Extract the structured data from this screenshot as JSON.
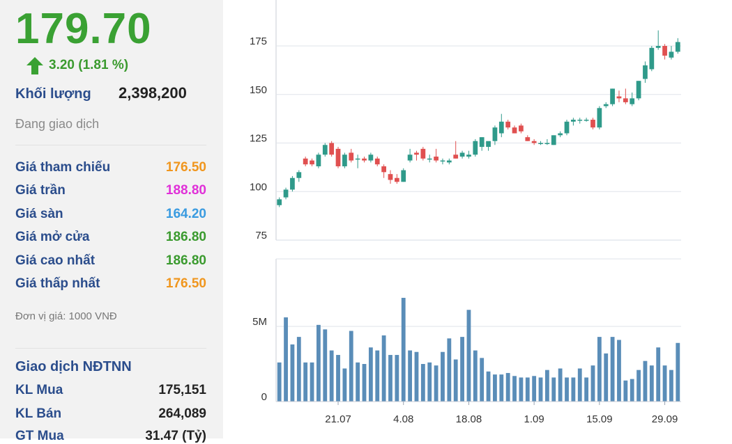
{
  "quote": {
    "price": "179.70",
    "change": "3.20 (1.81 %)",
    "volume_label": "Khối lượng",
    "volume_value": "2,398,200",
    "status": "Đang giao dịch",
    "prices": [
      {
        "label": "Giá tham chiếu",
        "value": "176.50",
        "color": "#f0961e"
      },
      {
        "label": "Giá trần",
        "value": "188.80",
        "color": "#e030d8"
      },
      {
        "label": "Giá sàn",
        "value": "164.20",
        "color": "#3a9be0"
      },
      {
        "label": "Giá mở cửa",
        "value": "186.80",
        "color": "#3a9a2e"
      },
      {
        "label": "Giá cao nhất",
        "value": "186.80",
        "color": "#3a9a2e"
      },
      {
        "label": "Giá thấp nhất",
        "value": "176.50",
        "color": "#f0961e"
      }
    ],
    "unit_note": "Đơn vị giá: 1000 VNĐ",
    "foreign_title": "Giao dịch NĐTNN",
    "foreign_rows": [
      {
        "label": "KL Mua",
        "value": "175,151"
      },
      {
        "label": "KL Bán",
        "value": "264,089"
      },
      {
        "label": "GT Mua",
        "value": "31.47 (Tỷ)"
      }
    ]
  },
  "colors": {
    "up": "#3aa133",
    "candle_up": "#2f9a8a",
    "candle_down": "#e05050",
    "volume_bar": "#5a8db8",
    "label": "#2b4d8c"
  },
  "chart_data": [
    {
      "type": "candlestick",
      "y_ticks": [
        75,
        100,
        125,
        150,
        175
      ],
      "ylim": [
        75,
        185
      ],
      "x_ticks": [
        "21.07",
        "4.08",
        "18.08",
        "1.09",
        "15.09",
        "29.09"
      ],
      "x_tick_index": [
        9,
        19,
        29,
        39,
        49,
        59
      ],
      "ohlc": [
        {
          "o": 93,
          "h": 97,
          "l": 92,
          "c": 96
        },
        {
          "o": 97,
          "h": 102,
          "l": 96,
          "c": 101
        },
        {
          "o": 101,
          "h": 108,
          "l": 100,
          "c": 107
        },
        {
          "o": 107,
          "h": 111,
          "l": 105,
          "c": 110
        },
        {
          "o": 117,
          "h": 118,
          "l": 113,
          "c": 114
        },
        {
          "o": 116,
          "h": 117,
          "l": 113,
          "c": 114
        },
        {
          "o": 113,
          "h": 120,
          "l": 112,
          "c": 119
        },
        {
          "o": 119,
          "h": 125,
          "l": 118,
          "c": 124
        },
        {
          "o": 125,
          "h": 126,
          "l": 118,
          "c": 119
        },
        {
          "o": 122,
          "h": 123,
          "l": 112,
          "c": 113
        },
        {
          "o": 113,
          "h": 120,
          "l": 112,
          "c": 119
        },
        {
          "o": 120,
          "h": 122,
          "l": 115,
          "c": 116
        },
        {
          "o": 117,
          "h": 119,
          "l": 112,
          "c": 117
        },
        {
          "o": 117,
          "h": 118,
          "l": 115,
          "c": 116
        },
        {
          "o": 116,
          "h": 120,
          "l": 115,
          "c": 119
        },
        {
          "o": 117,
          "h": 118,
          "l": 113,
          "c": 114
        },
        {
          "o": 113,
          "h": 114,
          "l": 107,
          "c": 110
        },
        {
          "o": 109,
          "h": 111,
          "l": 104,
          "c": 106
        },
        {
          "o": 107,
          "h": 109,
          "l": 104,
          "c": 105
        },
        {
          "o": 105,
          "h": 112,
          "l": 105,
          "c": 111
        },
        {
          "o": 116,
          "h": 122,
          "l": 115,
          "c": 119
        },
        {
          "o": 120,
          "h": 121,
          "l": 116,
          "c": 119
        },
        {
          "o": 122,
          "h": 123,
          "l": 116,
          "c": 117
        },
        {
          "o": 117,
          "h": 119,
          "l": 115,
          "c": 117
        },
        {
          "o": 118,
          "h": 122,
          "l": 115,
          "c": 116
        },
        {
          "o": 116,
          "h": 117,
          "l": 114,
          "c": 116
        },
        {
          "o": 115,
          "h": 117,
          "l": 114,
          "c": 116
        },
        {
          "o": 119,
          "h": 126,
          "l": 117,
          "c": 117
        },
        {
          "o": 118,
          "h": 121,
          "l": 117,
          "c": 120
        },
        {
          "o": 118,
          "h": 121,
          "l": 117,
          "c": 119
        },
        {
          "o": 119,
          "h": 127,
          "l": 118,
          "c": 126
        },
        {
          "o": 123,
          "h": 128,
          "l": 121,
          "c": 128
        },
        {
          "o": 123,
          "h": 125,
          "l": 121,
          "c": 126
        },
        {
          "o": 126,
          "h": 134,
          "l": 124,
          "c": 133
        },
        {
          "o": 130,
          "h": 140,
          "l": 128,
          "c": 136
        },
        {
          "o": 136,
          "h": 137,
          "l": 132,
          "c": 133
        },
        {
          "o": 133,
          "h": 134,
          "l": 130,
          "c": 130
        },
        {
          "o": 134,
          "h": 135,
          "l": 130,
          "c": 131
        },
        {
          "o": 128,
          "h": 129,
          "l": 126,
          "c": 126
        },
        {
          "o": 126,
          "h": 127,
          "l": 124,
          "c": 125
        },
        {
          "o": 125,
          "h": 126,
          "l": 124,
          "c": 125
        },
        {
          "o": 125,
          "h": 127,
          "l": 124,
          "c": 125
        },
        {
          "o": 124,
          "h": 129,
          "l": 124,
          "c": 129
        },
        {
          "o": 129,
          "h": 131,
          "l": 128,
          "c": 130
        },
        {
          "o": 130,
          "h": 137,
          "l": 129,
          "c": 136
        },
        {
          "o": 136,
          "h": 138,
          "l": 134,
          "c": 137
        },
        {
          "o": 137,
          "h": 138,
          "l": 135,
          "c": 137
        },
        {
          "o": 137,
          "h": 138,
          "l": 136,
          "c": 137
        },
        {
          "o": 137,
          "h": 138,
          "l": 132,
          "c": 133
        },
        {
          "o": 133,
          "h": 144,
          "l": 132,
          "c": 143
        },
        {
          "o": 144,
          "h": 146,
          "l": 143,
          "c": 145
        },
        {
          "o": 145,
          "h": 153,
          "l": 144,
          "c": 153
        },
        {
          "o": 149,
          "h": 152,
          "l": 146,
          "c": 148
        },
        {
          "o": 148,
          "h": 153,
          "l": 145,
          "c": 146
        },
        {
          "o": 145,
          "h": 151,
          "l": 144,
          "c": 148
        },
        {
          "o": 148,
          "h": 157,
          "l": 147,
          "c": 157
        },
        {
          "o": 158,
          "h": 167,
          "l": 156,
          "c": 165
        },
        {
          "o": 163,
          "h": 175,
          "l": 162,
          "c": 174
        },
        {
          "o": 174,
          "h": 183,
          "l": 173,
          "c": 175
        },
        {
          "o": 175,
          "h": 176,
          "l": 168,
          "c": 170
        },
        {
          "o": 169,
          "h": 175,
          "l": 168,
          "c": 172
        },
        {
          "o": 172,
          "h": 179,
          "l": 171,
          "c": 177
        }
      ]
    },
    {
      "type": "bar",
      "y_ticks": [
        0,
        5
      ],
      "y_tick_labels": [
        "0",
        "5M"
      ],
      "ylim": [
        0,
        7.5
      ],
      "x_ticks": [
        "21.07",
        "4.08",
        "18.08",
        "1.09",
        "15.09",
        "29.09"
      ],
      "values": [
        2.6,
        5.6,
        3.8,
        4.3,
        2.6,
        2.6,
        5.1,
        4.8,
        3.4,
        3.1,
        2.2,
        4.7,
        2.6,
        2.5,
        3.6,
        3.4,
        4.4,
        3.1,
        3.1,
        6.9,
        3.4,
        3.3,
        2.5,
        2.6,
        2.4,
        3.3,
        4.2,
        2.8,
        4.3,
        6.1,
        3.4,
        2.9,
        2.0,
        1.8,
        1.8,
        1.9,
        1.7,
        1.6,
        1.6,
        1.7,
        1.6,
        2.1,
        1.6,
        2.2,
        1.6,
        1.6,
        2.2,
        1.6,
        2.4,
        4.3,
        3.2,
        4.3,
        4.1,
        1.4,
        1.5,
        2.1,
        2.7,
        2.4,
        3.6,
        2.4,
        2.1,
        3.9
      ]
    }
  ]
}
